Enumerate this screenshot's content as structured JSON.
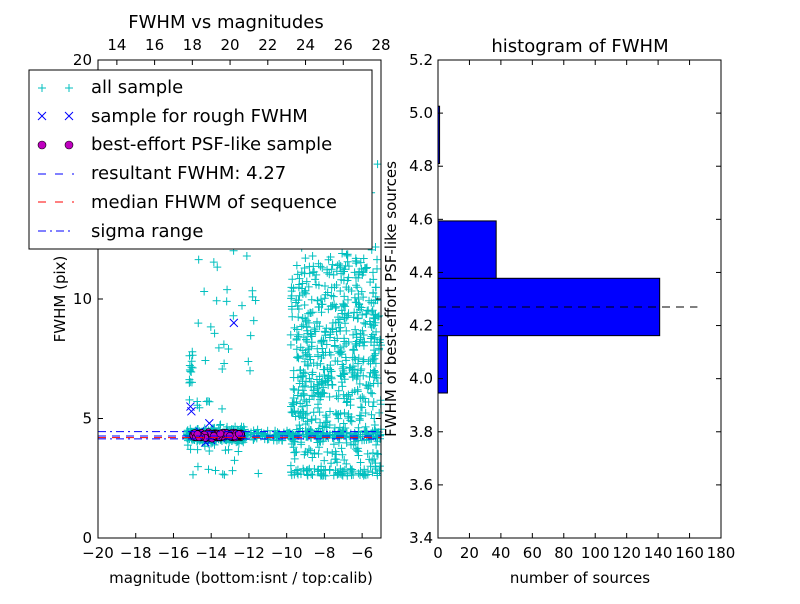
{
  "chart_data": [
    {
      "type": "scatter",
      "title": "FWHM vs magnitudes",
      "xlabel": "magnitude (bottom:isnt / top:calib)",
      "ylabel": "FWHM (pix)",
      "xlim": [
        -20,
        -5
      ],
      "ylim": [
        0,
        20
      ],
      "top_xlim": [
        13,
        28
      ],
      "xticks": [
        "−20",
        "−18",
        "−16",
        "−14",
        "−12",
        "−10",
        "−8",
        "−6"
      ],
      "xtick_values": [
        -20,
        -18,
        -16,
        -14,
        -12,
        -10,
        -8,
        -6
      ],
      "top_xticks": [
        "14",
        "16",
        "18",
        "20",
        "22",
        "24",
        "26",
        "28"
      ],
      "top_xtick_values": [
        14,
        16,
        18,
        20,
        22,
        24,
        26,
        28
      ],
      "yticks": [
        "0",
        "5",
        "10"
      ],
      "ytick_values": [
        0,
        5,
        10
      ],
      "extra_yticks": [
        {
          "label": "20",
          "value": 20
        }
      ],
      "legend": {
        "placement": "top-left",
        "entries": [
          {
            "label": "all sample",
            "marker": "+",
            "color": "#00bfbf"
          },
          {
            "label": "sample for rough FWHM",
            "marker": "x",
            "color": "#0000ff"
          },
          {
            "label": "best-effort PSF-like sample",
            "marker": "o",
            "color": "#bf00bf"
          },
          {
            "label": "resultant FWHM: 4.27",
            "marker": "--",
            "color": "#0000ff"
          },
          {
            "label": "median FHWM of sequence",
            "marker": "--",
            "color": "#ff0000"
          },
          {
            "label": "sigma range",
            "marker": "-.",
            "color": "#0000ff"
          }
        ]
      },
      "resultant_fwhm": 4.27,
      "median_fwhm": 4.2,
      "sigma_range": [
        4.15,
        4.45
      ],
      "series": [
        {
          "name": "all sample",
          "color": "#00bfbf",
          "marker": "+",
          "clusters": [
            {
              "x_range": [
                -15.3,
                -12.2
              ],
              "y_center": 4.3,
              "y_spread": 0.15,
              "count": 350
            },
            {
              "x_range": [
                -12.2,
                -5.0
              ],
              "y_center": 4.3,
              "y_spread": 0.12,
              "count": 180
            },
            {
              "x_range": [
                -9.8,
                -5.0
              ],
              "y_center": 7.5,
              "y_spread": 3.5,
              "count": 800
            },
            {
              "x_range": [
                -15.2,
                -11.5
              ],
              "y_center": 9.0,
              "y_spread": 5.5,
              "count": 70
            },
            {
              "x_range": [
                -15.2,
                -14.9
              ],
              "y_center": 7.0,
              "y_spread": 0.5,
              "count": 15
            }
          ]
        },
        {
          "name": "sample for rough FWHM",
          "color": "#0000ff",
          "marker": "x",
          "points": [
            {
              "x": -15.1,
              "y": 5.5
            },
            {
              "x": -15.05,
              "y": 5.3
            },
            {
              "x": -12.8,
              "y": 9.0
            },
            {
              "x": -14.1,
              "y": 4.8
            },
            {
              "x": -14.3,
              "y": 4.0
            },
            {
              "x": -14.0,
              "y": 4.1
            },
            {
              "x": -14.8,
              "y": 4.3
            },
            {
              "x": -13.5,
              "y": 4.2
            },
            {
              "x": -13.0,
              "y": 4.4
            },
            {
              "x": -12.6,
              "y": 4.35
            },
            {
              "x": -14.6,
              "y": 4.45
            },
            {
              "x": -13.8,
              "y": 4.25
            }
          ]
        },
        {
          "name": "best-effort PSF-like sample",
          "color": "#bf00bf",
          "marker": "o",
          "clusters": [
            {
              "x_range": [
                -15.0,
                -12.4
              ],
              "y_center": 4.3,
              "y_spread": 0.06,
              "count": 220
            }
          ]
        }
      ]
    },
    {
      "type": "bar",
      "orientation": "horizontal",
      "title": "histogram of FWHM",
      "xlabel": "number of sources",
      "ylabel": "FWHM of best-effort PSF-like sources",
      "xlim": [
        0,
        180
      ],
      "ylim": [
        3.4,
        5.2
      ],
      "xticks": [
        "0",
        "20",
        "40",
        "60",
        "80",
        "100",
        "120",
        "140",
        "160",
        "180"
      ],
      "xtick_values": [
        0,
        20,
        40,
        60,
        80,
        100,
        120,
        140,
        160,
        180
      ],
      "yticks": [
        "3.4",
        "3.6",
        "3.8",
        "4.0",
        "4.2",
        "4.4",
        "4.6",
        "4.8",
        "5.0",
        "5.2"
      ],
      "ytick_values": [
        3.4,
        3.6,
        3.8,
        4.0,
        4.2,
        4.4,
        4.6,
        4.8,
        5.0,
        5.2
      ],
      "bar_color": "#0000ff",
      "bins": [
        {
          "y0": 3.946,
          "y1": 4.162,
          "value": 6
        },
        {
          "y0": 4.162,
          "y1": 4.378,
          "value": 141
        },
        {
          "y0": 4.378,
          "y1": 4.594,
          "value": 37
        },
        {
          "y0": 4.594,
          "y1": 4.81,
          "value": 0
        },
        {
          "y0": 4.81,
          "y1": 5.026,
          "value": 1
        }
      ],
      "reference_line": {
        "y": 4.27,
        "x_range": [
          0,
          165
        ],
        "style": "--",
        "color": "#000000"
      }
    }
  ]
}
